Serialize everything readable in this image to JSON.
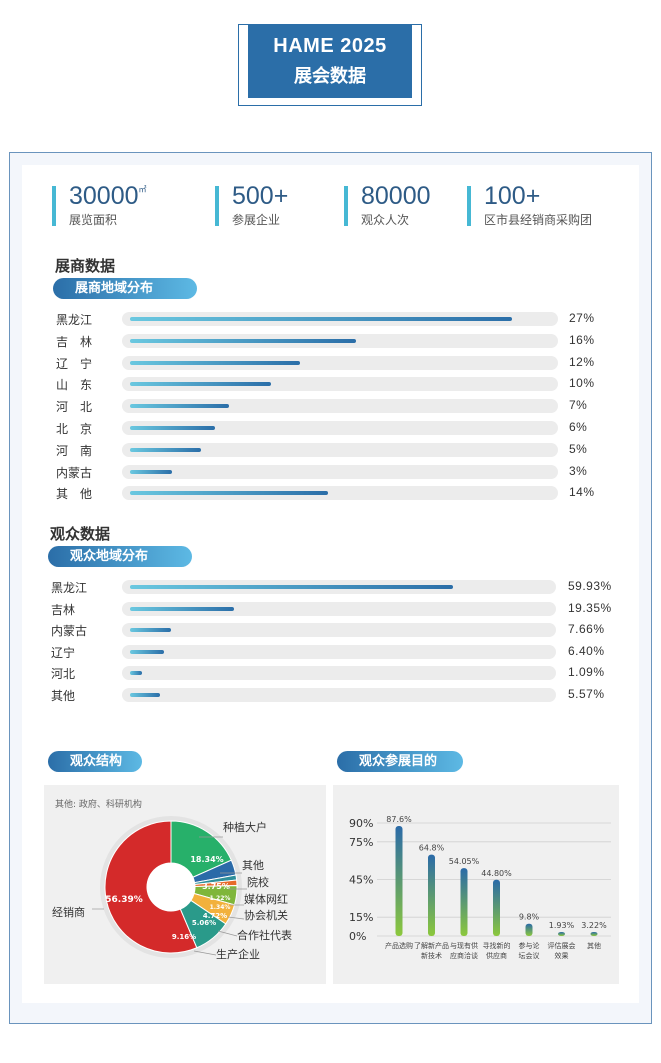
{
  "header": {
    "title_en": "HAME 2025",
    "title_cn": "展会数据"
  },
  "stats": [
    {
      "value": "30000",
      "unit": "㎡",
      "label": "展览面积"
    },
    {
      "value": "500+",
      "unit": "",
      "label": "参展企业"
    },
    {
      "value": "80000",
      "unit": "",
      "label": "观众人次"
    },
    {
      "value": "100+",
      "unit": "",
      "label": "区市县经销商采购团"
    }
  ],
  "exhibitor_section": {
    "heading": "展商数据",
    "pill": "展商地域分布",
    "rows": [
      {
        "name": "黑龙江",
        "pct": "27%",
        "value": 27
      },
      {
        "name": "吉　林",
        "pct": "16%",
        "value": 16
      },
      {
        "name": "辽　宁",
        "pct": "12%",
        "value": 12
      },
      {
        "name": "山　东",
        "pct": "10%",
        "value": 10
      },
      {
        "name": "河　北",
        "pct": "7%",
        "value": 7
      },
      {
        "name": "北　京",
        "pct": "6%",
        "value": 6
      },
      {
        "name": "河　南",
        "pct": "5%",
        "value": 5
      },
      {
        "name": "内蒙古",
        "pct": "3%",
        "value": 3
      },
      {
        "name": "其　他",
        "pct": "14%",
        "value": 14
      }
    ]
  },
  "visitor_section": {
    "heading": "观众数据",
    "pill": "观众地域分布",
    "rows": [
      {
        "name": "黑龙江",
        "pct": "59.93%",
        "value": 59.93
      },
      {
        "name": "吉林",
        "pct": "19.35%",
        "value": 19.35
      },
      {
        "name": "内蒙古",
        "pct": "7.66%",
        "value": 7.66
      },
      {
        "name": "辽宁",
        "pct": "6.40%",
        "value": 6.4
      },
      {
        "name": "河北",
        "pct": "1.09%",
        "value": 1.09
      },
      {
        "name": "其他",
        "pct": "5.57%",
        "value": 5.57
      }
    ]
  },
  "structure": {
    "pill": "观众结构",
    "note": "其他: 政府、科研机构",
    "chart_data": {
      "type": "pie",
      "slices": [
        {
          "name": "经销商",
          "value": 56.39,
          "label": "56.39%",
          "color": "#d42a2a"
        },
        {
          "name": "种植大户",
          "value": 18.34,
          "label": "18.34%",
          "color": "#27b06a"
        },
        {
          "name": "其他",
          "value": 3.75,
          "label": "3.75%",
          "color": "#2a6aa8"
        },
        {
          "name": "院校",
          "value": 1.22,
          "label": "1.22%",
          "color": "#2e8f9a"
        },
        {
          "name": "媒体网红",
          "value": 1.34,
          "label": "1.34%",
          "color": "#e76a2a"
        },
        {
          "name": "协会机关",
          "value": 4.72,
          "label": "4.72%",
          "color": "#7fb63a"
        },
        {
          "name": "合作社代表",
          "value": 5.06,
          "label": "5.06%",
          "color": "#f2b13c"
        },
        {
          "name": "生产企业",
          "value": 9.16,
          "label": "9.16%",
          "color": "#2a9a8a"
        }
      ]
    }
  },
  "purpose": {
    "pill": "观众参展目的",
    "chart_data": {
      "type": "bar",
      "categories": [
        [
          "产品选购"
        ],
        [
          "了解新产品",
          "新技术"
        ],
        [
          "与现有供",
          "应商洽谈"
        ],
        [
          "寻找新的",
          "供应商"
        ],
        [
          "参与论",
          "坛会议"
        ],
        [
          "评估展会",
          "效果"
        ],
        [
          "其他"
        ]
      ],
      "values": [
        87.6,
        64.8,
        54.05,
        44.8,
        9.8,
        1.93,
        3.22
      ],
      "labels": [
        "87.6%",
        "64.8%",
        "54.05%",
        "44.80%",
        "9.8%",
        "1.93%",
        "3.22%"
      ],
      "yticks": [
        "90%",
        "75%",
        "45%",
        "15%",
        "0%"
      ],
      "ylim": [
        0,
        90
      ]
    }
  },
  "colors": {
    "brand": "#2b6ea8",
    "accent": "#46b8d4",
    "track": "#ececec"
  }
}
